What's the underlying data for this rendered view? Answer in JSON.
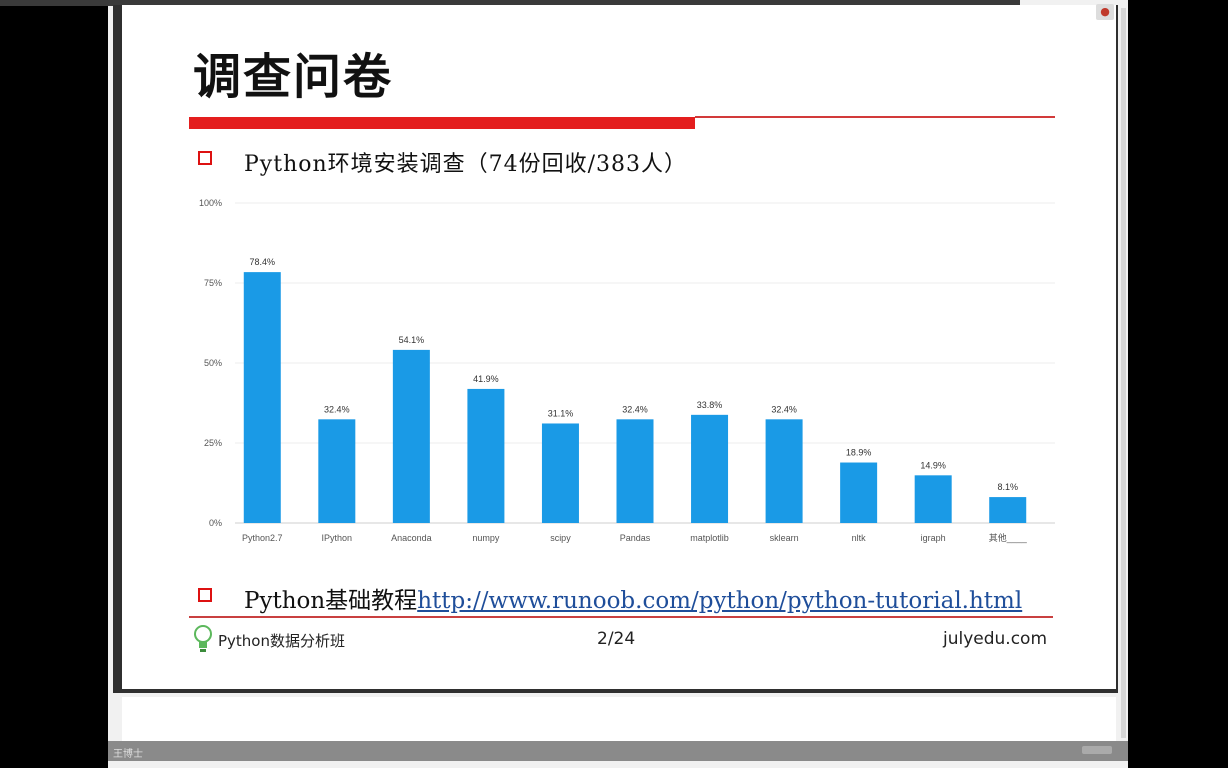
{
  "slide": {
    "title": "调查问卷",
    "bullet1": "Python环境安装调查（74份回收/383人）",
    "bullet2_prefix": "Python基础教程",
    "bullet2_link": "http://www.runoob.com/python/python-tutorial.html",
    "footer_left": "Python数据分析班",
    "page_number": "2/24",
    "footer_right": "julyedu.com"
  },
  "viewer": {
    "bottom_label": "王博士"
  },
  "colors": {
    "accent_red": "#e41e1e",
    "bar_blue": "#1a9ae6",
    "link_blue": "#1f4e9a"
  },
  "chart_data": {
    "type": "bar",
    "categories": [
      "Python2.7",
      "IPython",
      "Anaconda",
      "numpy",
      "scipy",
      "Pandas",
      "matplotlib",
      "sklearn",
      "nltk",
      "igraph",
      "其他____"
    ],
    "values": [
      78.4,
      32.4,
      54.1,
      41.9,
      31.1,
      32.4,
      33.8,
      32.4,
      18.9,
      14.9,
      8.1
    ],
    "value_labels": [
      "78.4%",
      "32.4%",
      "54.1%",
      "41.9%",
      "31.1%",
      "32.4%",
      "33.8%",
      "32.4%",
      "18.9%",
      "14.9%",
      "8.1%"
    ],
    "yticks": [
      "0%",
      "25%",
      "50%",
      "75%",
      "100%"
    ],
    "ylim": [
      0,
      100
    ],
    "grid": true,
    "title": "",
    "xlabel": "",
    "ylabel": ""
  }
}
